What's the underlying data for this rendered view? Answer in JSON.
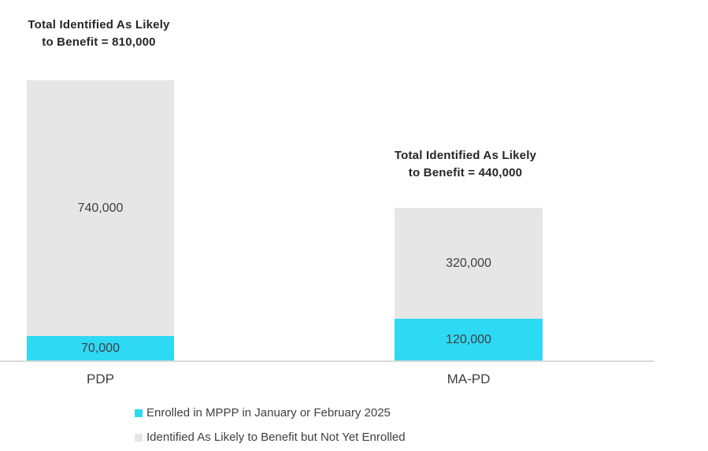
{
  "chart_data": {
    "type": "bar",
    "stacked": true,
    "title": "",
    "xlabel": "",
    "ylabel": "",
    "grid": false,
    "legend_position": "bottom-left",
    "categories": [
      "PDP",
      "MA-PD"
    ],
    "series": [
      {
        "name": "Enrolled in MPPP in January or February 2025",
        "color": "#2ED9F4",
        "values": [
          70000,
          120000
        ],
        "labels": [
          "70,000",
          "120,000"
        ]
      },
      {
        "name": "Identified As Likely to Benefit but Not Yet Enrolled",
        "color": "#E6E6E6",
        "values": [
          740000,
          320000
        ],
        "labels": [
          "740,000",
          "320,000"
        ]
      }
    ],
    "totals": [
      810000,
      440000
    ],
    "ylim": [
      0,
      810000
    ],
    "annotations": [
      {
        "line1": "Total Identified As Likely",
        "line2": "to Benefit = 810,000"
      },
      {
        "line1": "Total Identified As Likely",
        "line2": "to Benefit = 440,000"
      }
    ]
  },
  "legend": [
    {
      "label": "Enrolled in MPPP in January or February 2025",
      "color": "#2ED9F4"
    },
    {
      "label": "Identified As Likely to Benefit but Not Yet Enrolled",
      "color": "#E6E6E6"
    }
  ],
  "colors": {
    "axis_line": "#D9D9D9",
    "label_text": "#404040",
    "title_text": "#262626",
    "background": "#FFFFFF"
  }
}
